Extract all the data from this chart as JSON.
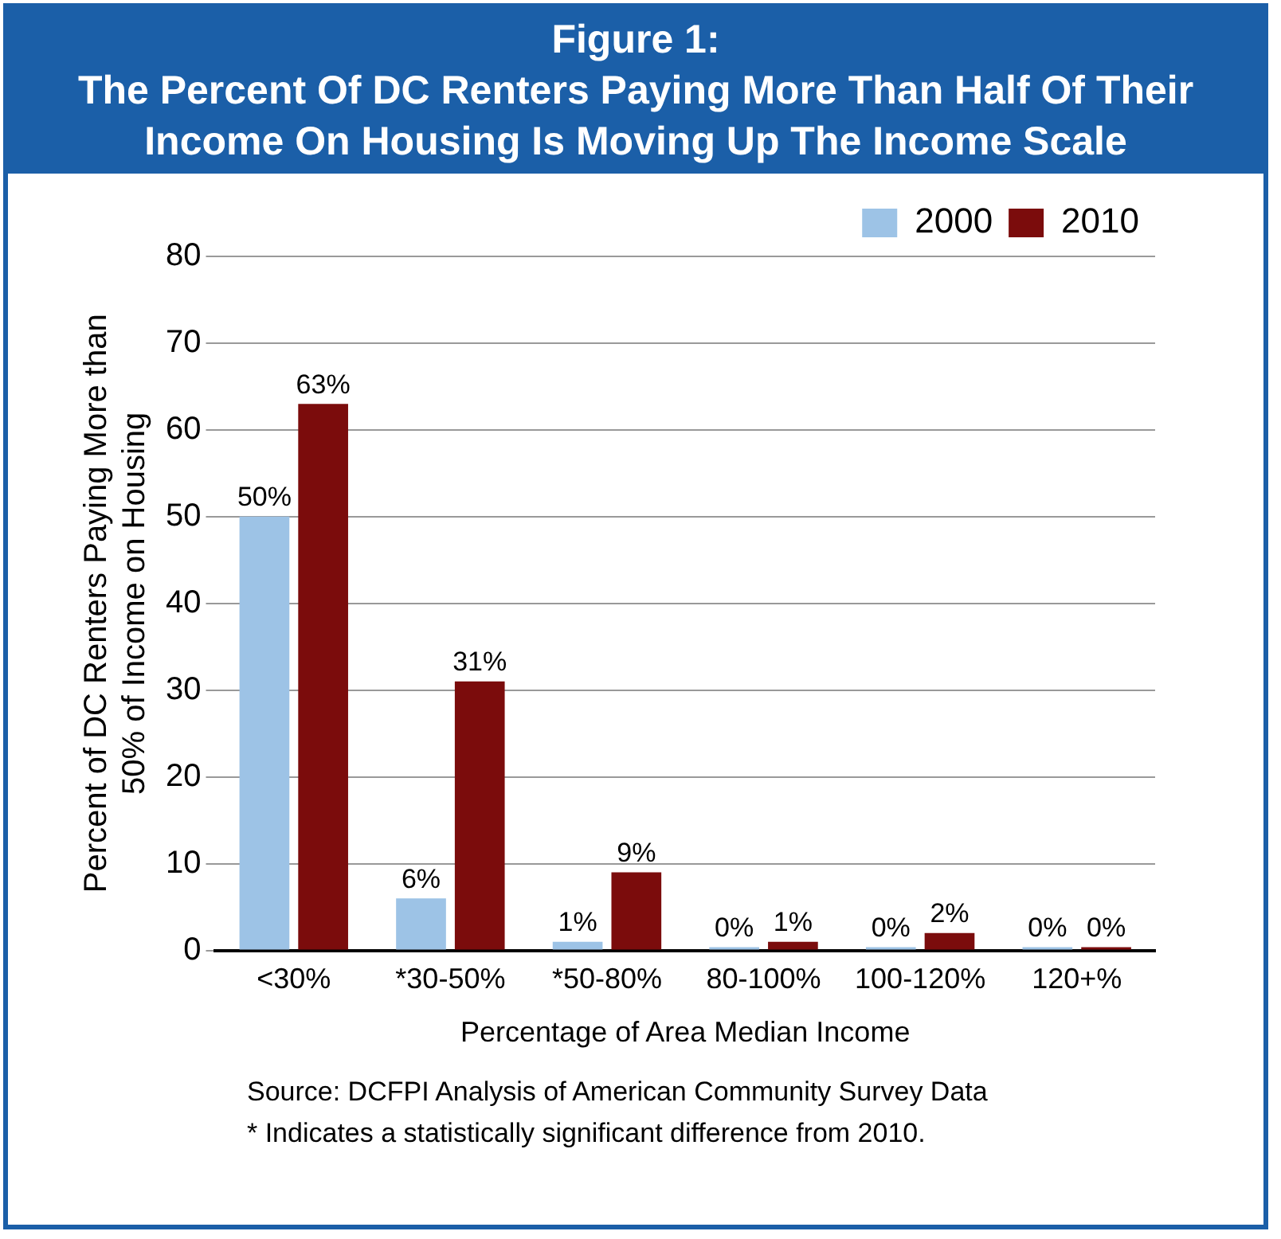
{
  "chart_data": {
    "type": "bar",
    "title": "Figure 1:\nThe Percent Of DC Renters Paying More Than Half Of Their Income On Housing Is Moving Up The Income Scale",
    "xlabel": "Percentage of Area Median Income",
    "ylabel": "Percent of DC Renters Paying More than\n50% of Income on Housing",
    "categories": [
      "<30%",
      "*30-50%",
      "*50-80%",
      "80-100%",
      "100-120%",
      "120+%"
    ],
    "series": [
      {
        "name": "2000",
        "color": "#9dc3e6",
        "values": [
          50,
          6,
          1,
          0,
          0,
          0
        ],
        "value_labels": [
          "50%",
          "6%",
          "1%",
          "0%",
          "0%",
          "0%"
        ]
      },
      {
        "name": "2010",
        "color": "#7b0c0c",
        "values": [
          63,
          31,
          9,
          1,
          2,
          0
        ],
        "value_labels": [
          "63%",
          "31%",
          "9%",
          "1%",
          "2%",
          "0%"
        ]
      }
    ],
    "ylim": [
      0,
      80
    ],
    "yticks": [
      0,
      10,
      20,
      30,
      40,
      50,
      60,
      70,
      80
    ],
    "grid": "y",
    "legend": "top right",
    "annotations": [
      "Source: DCFPI Analysis of American Community Survey Data",
      "* Indicates a statistically significant difference from 2010."
    ]
  }
}
